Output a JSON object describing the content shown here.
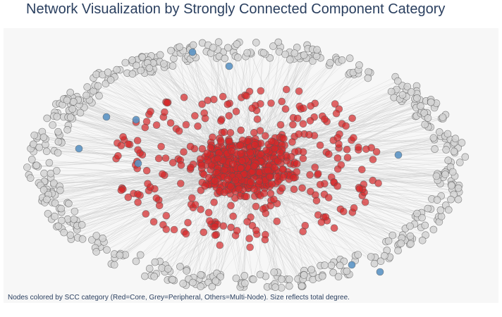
{
  "title": "Network Visualization by Strongly Connected Component Category",
  "caption": "Nodes colored by SCC category (Red=Core, Grey=Peripheral, Others=Multi-Node). Size reflects total degree.",
  "colors": {
    "core": "#d62728",
    "peripheral": "#d3d3d3",
    "multi_node": "#5b93c4",
    "edge": "#c8c8c8",
    "node_outline": "#555555",
    "plot_background": "#f7f7f7"
  },
  "legend": {
    "core": "Core",
    "peripheral": "Peripheral",
    "multi_node": "Multi-Node"
  },
  "chart_data": {
    "type": "network",
    "categories": [
      "Core",
      "Peripheral",
      "Multi-Node"
    ],
    "approx_node_counts": {
      "Core": 700,
      "Peripheral": 520,
      "Multi-Node": 10
    },
    "layout": "core nodes clustered in center, peripheral nodes on outer ring, multi-node components scattered between"
  }
}
